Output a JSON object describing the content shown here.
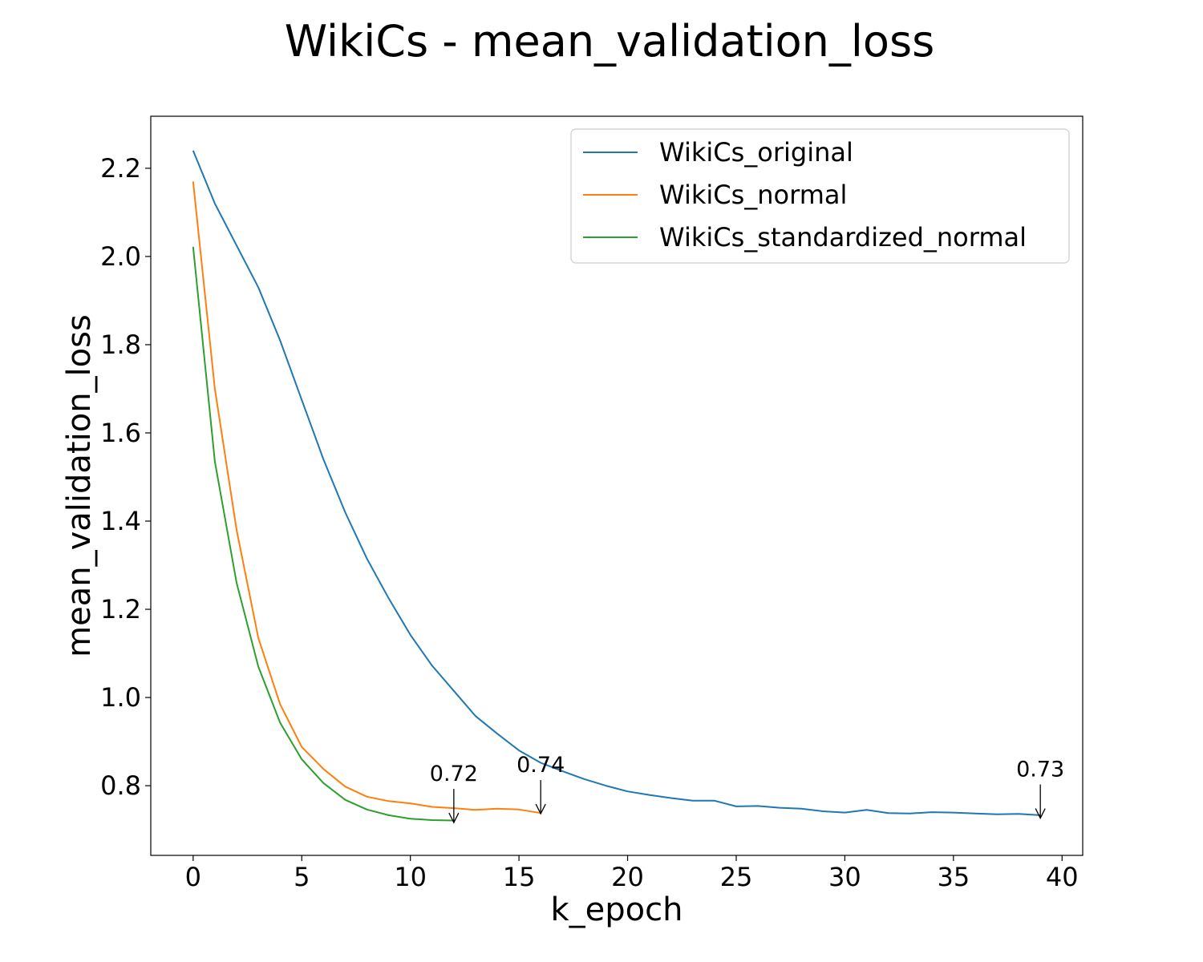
{
  "chart_data": {
    "type": "line",
    "title": "WikiCs - mean_validation_loss",
    "xlabel": "k_epoch",
    "ylabel": "mean_validation_loss",
    "xlim": [
      -1.95,
      40.95
    ],
    "ylim": [
      0.642,
      2.318
    ],
    "xticks": [
      0,
      5,
      10,
      15,
      20,
      25,
      30,
      35,
      40
    ],
    "yticks": [
      0.8,
      1.0,
      1.2,
      1.4,
      1.6,
      1.8,
      2.0,
      2.2
    ],
    "grid": false,
    "legend_position": "top-right",
    "series": [
      {
        "name": "WikiCs_original",
        "color": "#1f77b4",
        "x": [
          0,
          1,
          2,
          3,
          4,
          5,
          6,
          7,
          8,
          9,
          10,
          11,
          12,
          13,
          14,
          15,
          16,
          17,
          18,
          19,
          20,
          21,
          22,
          23,
          24,
          25,
          26,
          27,
          28,
          29,
          30,
          31,
          32,
          33,
          34,
          35,
          36,
          37,
          38,
          39
        ],
        "y": [
          2.24,
          2.12,
          2.025,
          1.93,
          1.81,
          1.675,
          1.54,
          1.42,
          1.315,
          1.225,
          1.142,
          1.072,
          1.015,
          0.958,
          0.918,
          0.88,
          0.852,
          0.833,
          0.815,
          0.8,
          0.787,
          0.779,
          0.772,
          0.766,
          0.766,
          0.753,
          0.754,
          0.75,
          0.748,
          0.742,
          0.739,
          0.745,
          0.738,
          0.737,
          0.74,
          0.739,
          0.737,
          0.735,
          0.736,
          0.733
        ]
      },
      {
        "name": "WikiCs_normal",
        "color": "#ff7f0e",
        "x": [
          0,
          1,
          2,
          3,
          4,
          5,
          6,
          7,
          8,
          9,
          10,
          11,
          12,
          13,
          14,
          15,
          16
        ],
        "y": [
          2.17,
          1.7,
          1.38,
          1.135,
          0.985,
          0.888,
          0.838,
          0.798,
          0.775,
          0.765,
          0.76,
          0.752,
          0.749,
          0.745,
          0.748,
          0.746,
          0.738
        ]
      },
      {
        "name": "WikiCs_standardized_normal",
        "color": "#2ca02c",
        "x": [
          0,
          1,
          2,
          3,
          4,
          5,
          6,
          7,
          8,
          9,
          10,
          11,
          12
        ],
        "y": [
          2.022,
          1.535,
          1.26,
          1.07,
          0.943,
          0.86,
          0.806,
          0.768,
          0.746,
          0.733,
          0.725,
          0.722,
          0.721
        ]
      }
    ],
    "annotations": [
      {
        "text": "0.72",
        "x": 12,
        "y": 0.72
      },
      {
        "text": "0.74",
        "x": 16,
        "y": 0.74
      },
      {
        "text": "0.73",
        "x": 39,
        "y": 0.73
      }
    ]
  }
}
